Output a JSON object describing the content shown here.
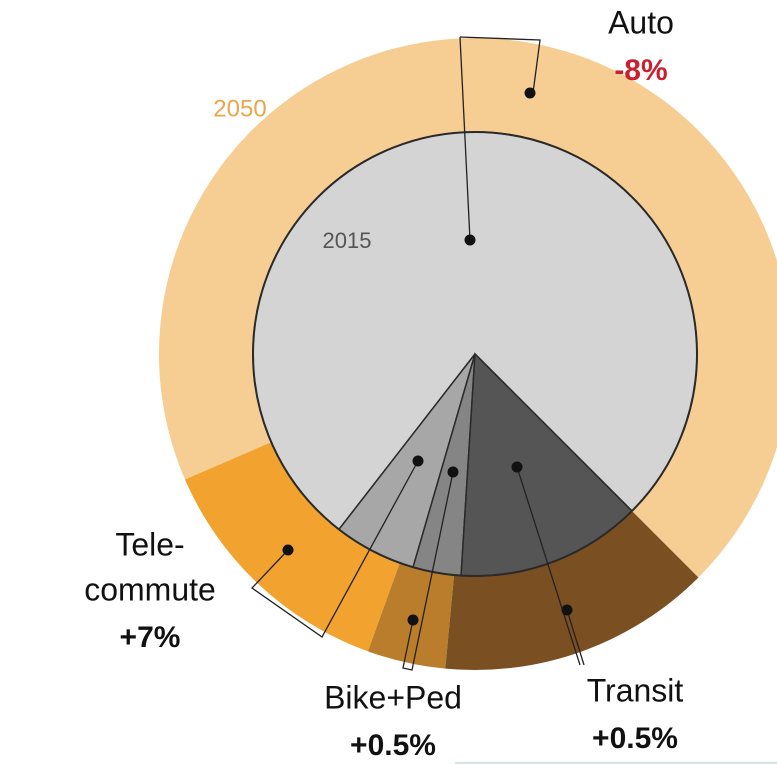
{
  "chart_data": {
    "type": "nested_pie",
    "categories": [
      [
        "Auto"
      ],
      [
        "Tele-",
        "commute"
      ],
      [
        "Bike+Ped"
      ],
      [
        "Transit"
      ]
    ],
    "series": [
      {
        "name": "2050",
        "values": [
          69,
          13,
          4,
          14
        ],
        "colors": [
          "#f6cd92",
          "#f1a22f",
          "#b97d2c",
          "#7a4f22"
        ],
        "color": "#e9a64c"
      },
      {
        "name": "2015",
        "values": [
          77,
          6,
          3.5,
          13.5
        ],
        "colors": [
          "#d4d4d4",
          "#a7a7a7",
          "#858585",
          "#555555"
        ],
        "color": "#555555"
      }
    ],
    "changes": [
      -8,
      7,
      0.5,
      0.5
    ],
    "value_labels": [
      "-8%",
      "+7%",
      "+0.5%",
      "+0.5%"
    ],
    "change_colors": [
      "#c8202e",
      "#111111",
      "#111111",
      "#111111"
    ]
  }
}
